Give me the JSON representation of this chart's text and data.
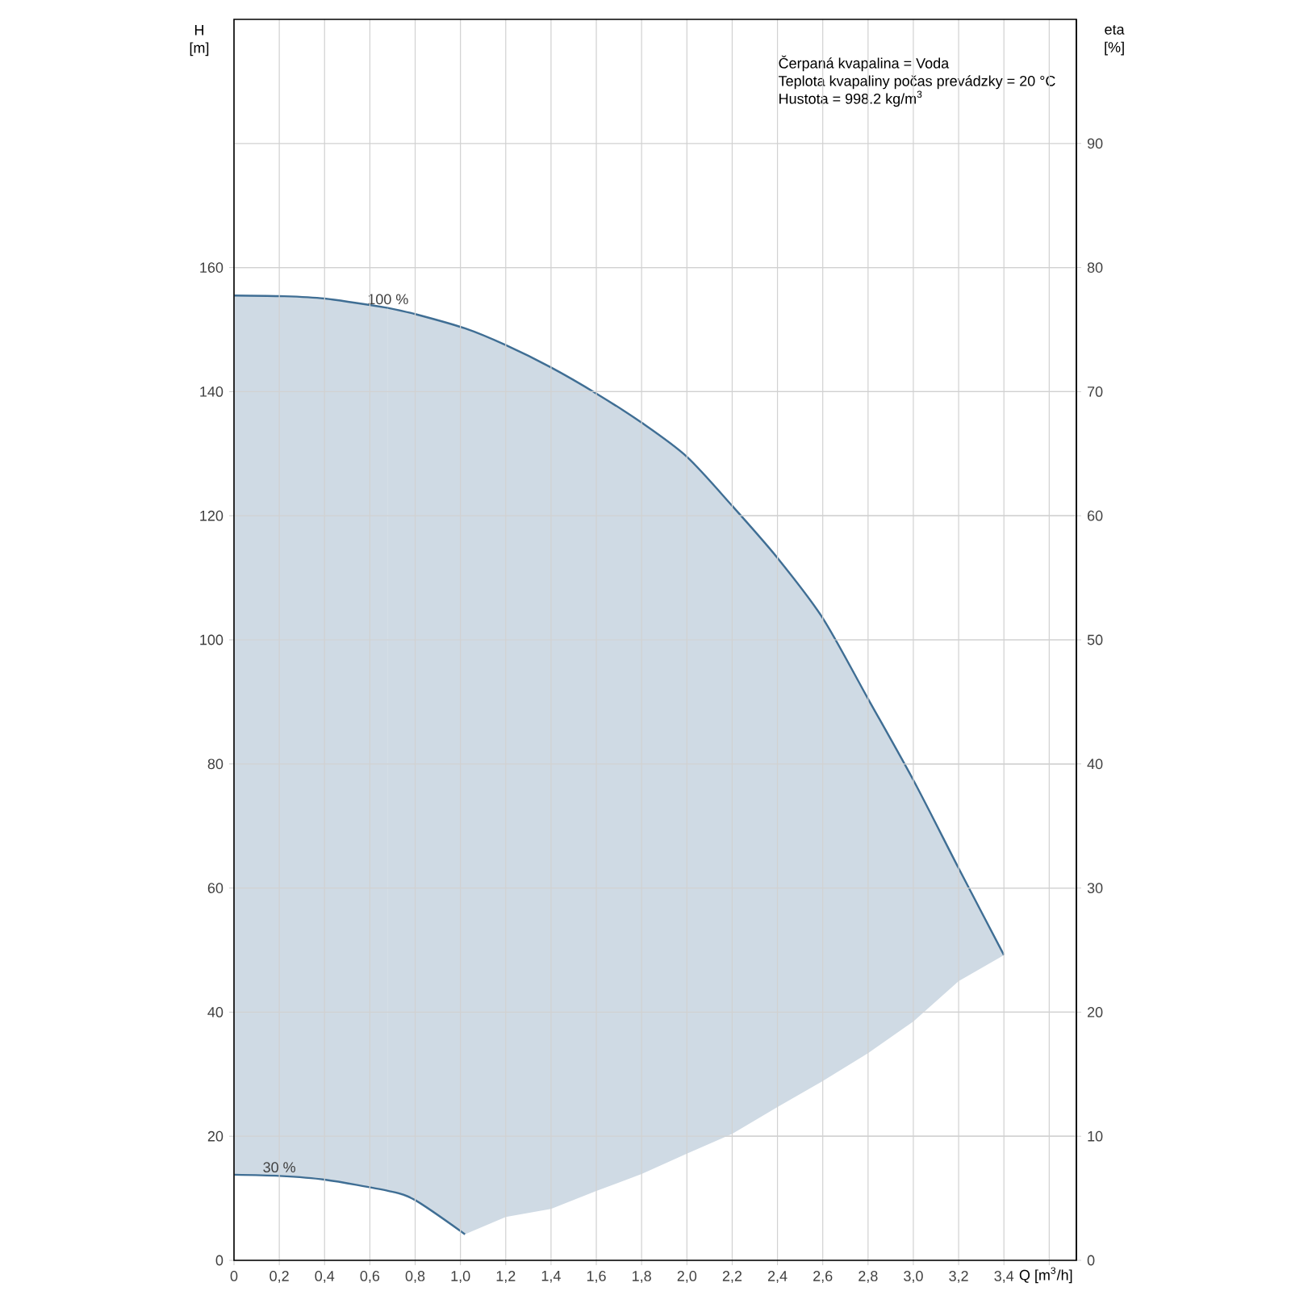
{
  "chart_data": {
    "type": "line",
    "xlabel": "Q [m$^{3}$/h]",
    "ylabel": "H [m]",
    "y2label": "eta [%]",
    "xlim": [
      0,
      3.72
    ],
    "ylim": [
      0,
      200
    ],
    "y2lim": [
      0,
      100
    ],
    "xticks": [
      0,
      {
        "value": 0.2,
        "label": "0,2"
      },
      {
        "value": 0.4,
        "label": "0,4"
      },
      {
        "value": 0.6,
        "label": "0,6"
      },
      {
        "value": 0.8,
        "label": "0,8"
      },
      {
        "value": 1.0,
        "label": "1,0"
      },
      {
        "value": 1.2,
        "label": "1,2"
      },
      {
        "value": 1.4,
        "label": "1,4"
      },
      {
        "value": 1.6,
        "label": "1,6"
      },
      {
        "value": 1.8,
        "label": "1,8"
      },
      {
        "value": 2.0,
        "label": "2,0"
      },
      {
        "value": 2.2,
        "label": "2,2"
      },
      {
        "value": 2.4,
        "label": "2,4"
      },
      {
        "value": 2.6,
        "label": "2,6"
      },
      {
        "value": 2.8,
        "label": "2,8"
      },
      {
        "value": 3.0,
        "label": "3,0"
      },
      {
        "value": 3.2,
        "label": "3,2"
      },
      {
        "value": 3.4,
        "label": "3,4"
      },
      {
        "value": 3.6,
        "label": null
      }
    ],
    "yticks": [
      0,
      20,
      40,
      60,
      80,
      100,
      120,
      140,
      160
    ],
    "y2ticks": [
      0,
      10,
      20,
      30,
      40,
      50,
      60,
      70,
      80,
      90
    ],
    "grid": true,
    "series": [
      {
        "color": "#3f6e94",
        "x": [
          0,
          0.2,
          0.4,
          0.68
        ],
        "values": [
          155.5,
          155.4,
          155.0,
          153.5
        ],
        "upper": [
          155.5,
          155.4,
          155.0,
          153.5
        ],
        "lower": [
          13.8,
          13.6,
          13.0,
          11.2
        ]
      },
      {
        "color": "#3f6e94",
        "x": [
          0.68,
          0.8,
          1.02,
          1.2,
          1.4,
          1.6,
          1.8,
          2.0,
          2.2,
          2.4,
          2.6,
          2.8,
          3.0,
          3.2,
          3.4
        ],
        "values": [
          153.5,
          152.5,
          150.2,
          147.5,
          143.9,
          139.7,
          135.0,
          129.5,
          121.6,
          113.2,
          103.5,
          90.5,
          77.4,
          63.2,
          49.2
        ],
        "upper": [
          153.5,
          152.5,
          150.2,
          147.5,
          143.9,
          139.7,
          135.0,
          129.5,
          121.6,
          113.2,
          103.5,
          90.5,
          77.4,
          63.2,
          49.2
        ],
        "lower": [
          11.2,
          9.7,
          4.2,
          7.0,
          8.3,
          11.2,
          13.9,
          17.2,
          20.4,
          24.7,
          28.9,
          33.4,
          38.5,
          45.0,
          49.2
        ]
      },
      {
        "type": "line",
        "color": "#3f6e94",
        "x": [
          0,
          0.2,
          0.4,
          0.68,
          0.8,
          1.02
        ],
        "values": [
          13.8,
          13.6,
          13.0,
          11.2,
          9.7,
          4.2
        ]
      }
    ],
    "annotations": [
      {
        "text": "100 %",
        "x": 0.68,
        "y": 153.5
      },
      {
        "text": "30 %",
        "x": 0.2,
        "y": 13.6
      },
      "Čerpaná kvapalina = Voda",
      "Teplota kvapaliny počas prevádzky = 20 °C",
      "Hustota = 998.2 kg/m$^{3}$"
    ]
  }
}
